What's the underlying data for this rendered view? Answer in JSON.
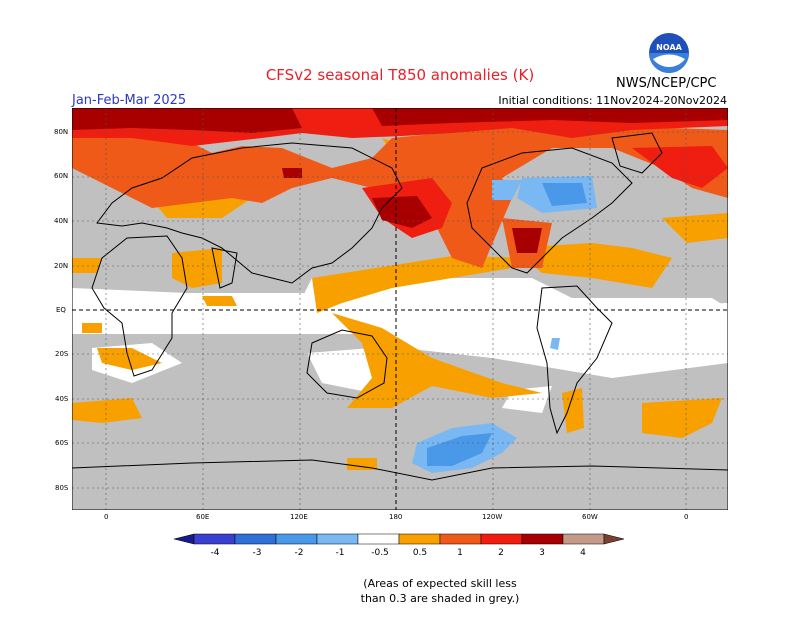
{
  "header": {
    "title": "CFSv2 seasonal T850 anomalies (K)",
    "period": "Jan-Feb-Mar 2025",
    "initial_conditions": "Initial conditions: 11Nov2024-20Nov2024",
    "agency": "NWS/NCEP/CPC",
    "logo_text": "NOAA"
  },
  "map": {
    "lat_labels": [
      "80N",
      "60N",
      "40N",
      "20N",
      "EQ",
      "20S",
      "40S",
      "60S",
      "80S"
    ],
    "lon_labels": [
      "0",
      "60E",
      "120E",
      "180",
      "120W",
      "60W",
      "0"
    ]
  },
  "colorbar": {
    "labels": [
      "-4",
      "-3",
      "-2",
      "-1",
      "-0.5",
      "0.5",
      "1",
      "2",
      "3",
      "4"
    ],
    "colors": [
      "#1a1a8c",
      "#3a3fcf",
      "#2f6fd8",
      "#4a98e8",
      "#7ab8f4",
      "#ffffff",
      "#f7a000",
      "#f05a18",
      "#f01e10",
      "#a80000",
      "#c49a88",
      "#7a4030"
    ]
  },
  "footnote": {
    "line1": "(Areas of expected skill less",
    "line2": "than 0.3 are shaded in grey.)"
  }
}
